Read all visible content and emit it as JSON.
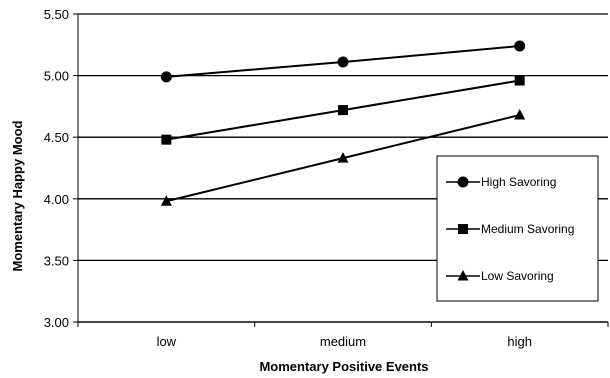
{
  "chart_data": {
    "type": "line",
    "title": "",
    "xlabel": "Momentary Positive Events",
    "ylabel": "Momentary Happy Mood",
    "categories": [
      "low",
      "medium",
      "high"
    ],
    "ylim": [
      3.0,
      5.5
    ],
    "yticks": [
      "3.00",
      "3.50",
      "4.00",
      "4.50",
      "5.00",
      "5.50"
    ],
    "grid": "horizontal",
    "legend_position": "right",
    "series": [
      {
        "name": "High Savoring",
        "marker": "circle",
        "values": [
          4.99,
          5.11,
          5.24
        ]
      },
      {
        "name": "Medium Savoring",
        "marker": "square",
        "values": [
          4.48,
          4.72,
          4.96
        ]
      },
      {
        "name": "Low Savoring",
        "marker": "triangle",
        "values": [
          3.98,
          4.33,
          4.68
        ]
      }
    ],
    "colors": {
      "line": "#000000",
      "background": "#ffffff"
    }
  }
}
